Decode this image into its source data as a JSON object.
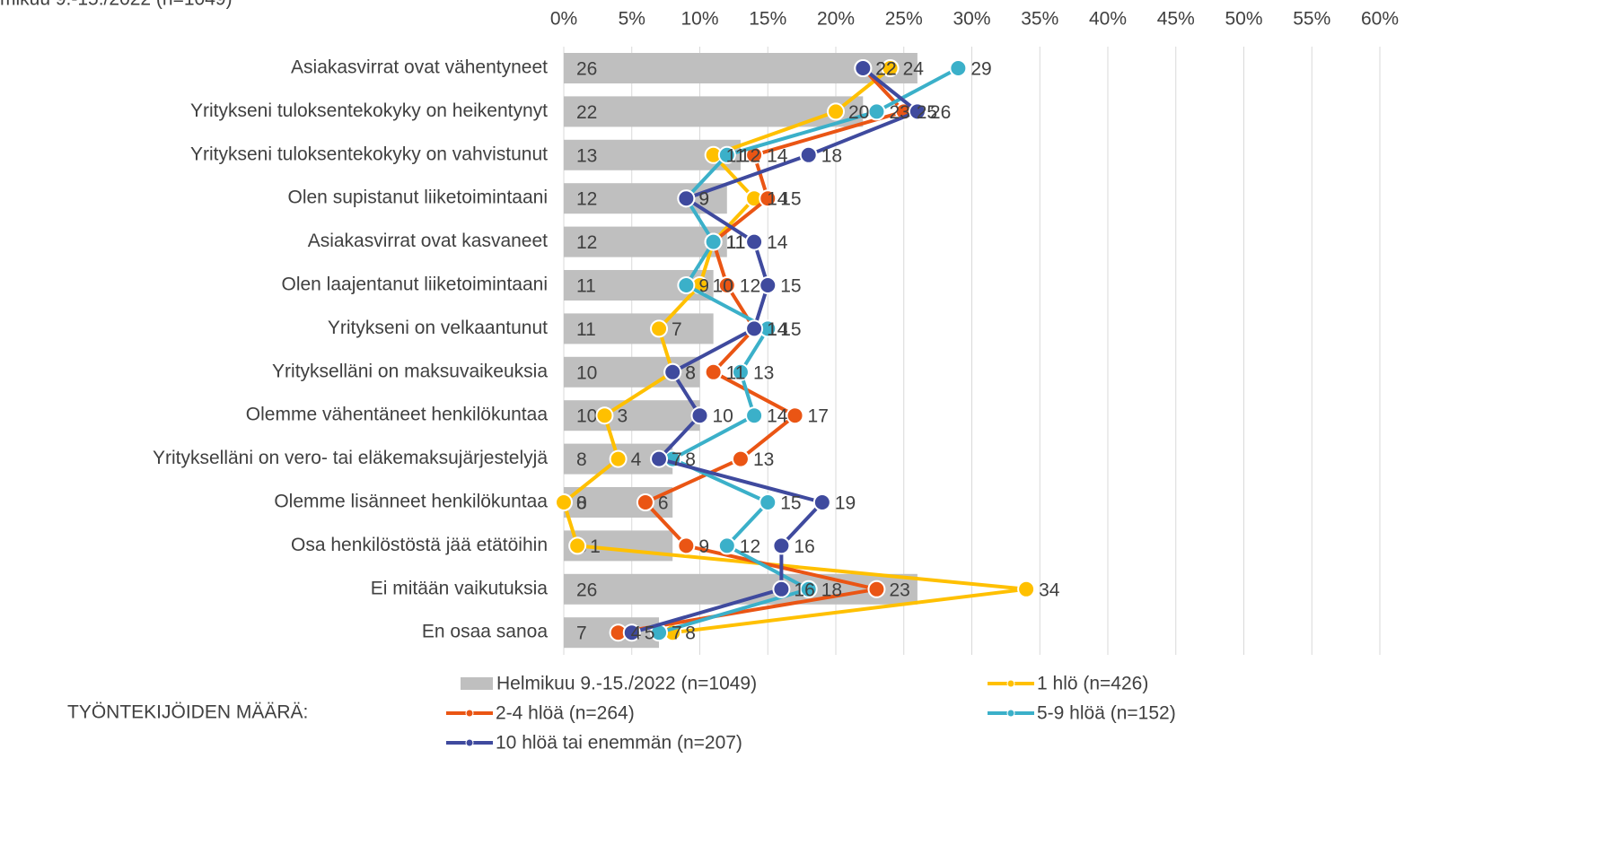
{
  "chart_data": {
    "type": "combo",
    "title": "mikuu 9.-15./2022 (n=1049)",
    "legend_title": "TYÖNTEKIJÖIDEN MÄÄRÄ:",
    "categories": [
      "Asiakasvirrat ovat vähentyneet",
      "Yritykseni tuloksentekokyky on heikentynyt",
      "Yritykseni tuloksentekokyky on vahvistunut",
      "Olen supistanut liiketoimintaani",
      "Asiakasvirrat ovat kasvaneet",
      "Olen laajentanut liiketoimintaani",
      "Yritykseni on velkaantunut",
      "Yritykselläni on maksuvaikeuksia",
      "Olemme vähentäneet henkilökuntaa",
      "Yritykselläni on vero- tai eläkemaksujärjestelyjä",
      "Olemme lisänneet henkilökuntaa",
      "Osa henkilöstöstä jää etätöihin",
      "Ei mitään vaikutuksia",
      "En osaa sanoa"
    ],
    "xlim": [
      0,
      60
    ],
    "xticks": [
      {
        "value": 0,
        "label": "0%"
      },
      {
        "value": 5,
        "label": "5%"
      },
      {
        "value": 10,
        "label": "10%"
      },
      {
        "value": 15,
        "label": "15%"
      },
      {
        "value": 20,
        "label": "20%"
      },
      {
        "value": 25,
        "label": "25%"
      },
      {
        "value": 30,
        "label": "30%"
      },
      {
        "value": 35,
        "label": "35%"
      },
      {
        "value": 40,
        "label": "40%"
      },
      {
        "value": 45,
        "label": "45%"
      },
      {
        "value": 50,
        "label": "50%"
      },
      {
        "value": 55,
        "label": "55%"
      },
      {
        "value": 60,
        "label": "60%"
      }
    ],
    "grid": true,
    "series": [
      {
        "name": "Helmikuu 9.-15./2022 (n=1049)",
        "kind": "bar",
        "color": "#bfbfbf",
        "values": [
          26,
          22,
          13,
          12,
          12,
          11,
          11,
          10,
          10,
          8,
          8,
          8,
          26,
          7
        ]
      },
      {
        "name": "1 hlö (n=426)",
        "kind": "line",
        "color": "#ffc000",
        "values": [
          24,
          20,
          11,
          14,
          11,
          10,
          7,
          8,
          3,
          4,
          0,
          1,
          34,
          8
        ]
      },
      {
        "name": "2-4 hlöä (n=264)",
        "kind": "line",
        "color": "#ea5514",
        "values": [
          22,
          25,
          14,
          15,
          11,
          12,
          14,
          11,
          17,
          13,
          6,
          9,
          23,
          4
        ]
      },
      {
        "name": "5-9 hlöä (n=152)",
        "kind": "line",
        "color": "#3bb0c9",
        "values": [
          29,
          23,
          12,
          9,
          11,
          9,
          15,
          13,
          14,
          8,
          15,
          12,
          18,
          7
        ]
      },
      {
        "name": "10 hlöä tai enemmän (n=207)",
        "kind": "line",
        "color": "#3f4a9e",
        "values": [
          22,
          26,
          18,
          9,
          14,
          15,
          14,
          8,
          10,
          7,
          19,
          16,
          16,
          5
        ]
      }
    ]
  }
}
